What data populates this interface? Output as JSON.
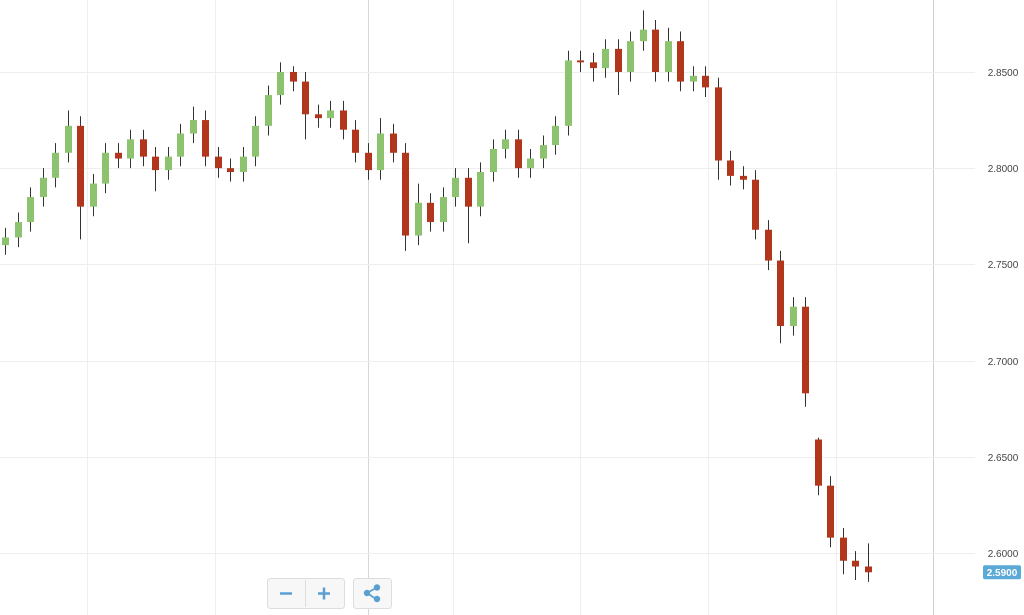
{
  "chart_data": {
    "type": "candlestick",
    "up_color": "#8dc26f",
    "down_color": "#b1361b",
    "open": [
      2.76,
      2.764,
      2.772,
      2.785,
      2.795,
      2.808,
      2.822,
      2.78,
      2.792,
      2.808,
      2.805,
      2.815,
      2.806,
      2.799,
      2.806,
      2.818,
      2.825,
      2.806,
      2.8,
      2.798,
      2.806,
      2.822,
      2.838,
      2.85,
      2.845,
      2.828,
      2.826,
      2.83,
      2.82,
      2.808,
      2.799,
      2.818,
      2.808,
      2.765,
      2.782,
      2.772,
      2.785,
      2.795,
      2.78,
      2.798,
      2.81,
      2.815,
      2.8,
      2.805,
      2.812,
      2.822,
      2.856,
      2.855,
      2.852,
      2.862,
      2.85,
      2.866,
      2.872,
      2.85,
      2.866,
      2.845,
      2.848,
      2.842,
      2.804,
      2.796,
      2.794,
      2.768,
      2.752,
      2.718,
      2.728,
      2.659,
      2.635,
      2.608,
      2.596,
      2.593
    ],
    "high": [
      2.769,
      2.777,
      2.79,
      2.8,
      2.813,
      2.83,
      2.827,
      2.797,
      2.813,
      2.813,
      2.82,
      2.82,
      2.811,
      2.811,
      2.823,
      2.832,
      2.83,
      2.811,
      2.805,
      2.811,
      2.827,
      2.843,
      2.855,
      2.853,
      2.85,
      2.833,
      2.835,
      2.835,
      2.825,
      2.813,
      2.826,
      2.823,
      2.813,
      2.792,
      2.787,
      2.79,
      2.8,
      2.8,
      2.803,
      2.815,
      2.82,
      2.82,
      2.81,
      2.817,
      2.827,
      2.861,
      2.861,
      2.86,
      2.867,
      2.867,
      2.871,
      2.882,
      2.877,
      2.873,
      2.871,
      2.853,
      2.853,
      2.847,
      2.809,
      2.801,
      2.799,
      2.773,
      2.757,
      2.733,
      2.733,
      2.66,
      2.64,
      2.613,
      2.601,
      2.605
    ],
    "low": [
      2.755,
      2.759,
      2.767,
      2.78,
      2.79,
      2.803,
      2.763,
      2.775,
      2.787,
      2.8,
      2.8,
      2.801,
      2.788,
      2.794,
      2.801,
      2.813,
      2.801,
      2.795,
      2.793,
      2.793,
      2.801,
      2.817,
      2.833,
      2.84,
      2.815,
      2.821,
      2.821,
      2.815,
      2.803,
      2.794,
      2.794,
      2.803,
      2.757,
      2.76,
      2.767,
      2.767,
      2.78,
      2.761,
      2.775,
      2.793,
      2.805,
      2.795,
      2.795,
      2.8,
      2.807,
      2.817,
      2.85,
      2.845,
      2.847,
      2.838,
      2.845,
      2.861,
      2.845,
      2.845,
      2.84,
      2.84,
      2.837,
      2.794,
      2.791,
      2.789,
      2.763,
      2.747,
      2.709,
      2.713,
      2.676,
      2.63,
      2.603,
      2.589,
      2.586,
      2.585
    ],
    "close": [
      2.764,
      2.772,
      2.785,
      2.795,
      2.808,
      2.822,
      2.78,
      2.792,
      2.808,
      2.805,
      2.815,
      2.806,
      2.799,
      2.806,
      2.818,
      2.825,
      2.806,
      2.8,
      2.798,
      2.806,
      2.822,
      2.838,
      2.85,
      2.845,
      2.828,
      2.826,
      2.83,
      2.82,
      2.808,
      2.799,
      2.818,
      2.808,
      2.765,
      2.782,
      2.772,
      2.785,
      2.795,
      2.78,
      2.798,
      2.81,
      2.815,
      2.8,
      2.805,
      2.812,
      2.822,
      2.856,
      2.855,
      2.852,
      2.862,
      2.85,
      2.866,
      2.872,
      2.85,
      2.866,
      2.845,
      2.848,
      2.842,
      2.804,
      2.796,
      2.794,
      2.768,
      2.752,
      2.718,
      2.728,
      2.683,
      2.635,
      2.608,
      2.596,
      2.593,
      2.59
    ],
    "ylim": [
      2.5678,
      2.8874
    ],
    "yticks": [
      {
        "value": 2.6,
        "label": "2.6000"
      },
      {
        "value": 2.65,
        "label": "2.6500"
      },
      {
        "value": 2.7,
        "label": "2.7000"
      },
      {
        "value": 2.75,
        "label": "2.7500"
      },
      {
        "value": 2.8,
        "label": "2.8000"
      },
      {
        "value": 2.85,
        "label": "2.8500"
      }
    ],
    "grid": true,
    "last_price": {
      "value": 2.59,
      "label": "2.5900"
    }
  }
}
